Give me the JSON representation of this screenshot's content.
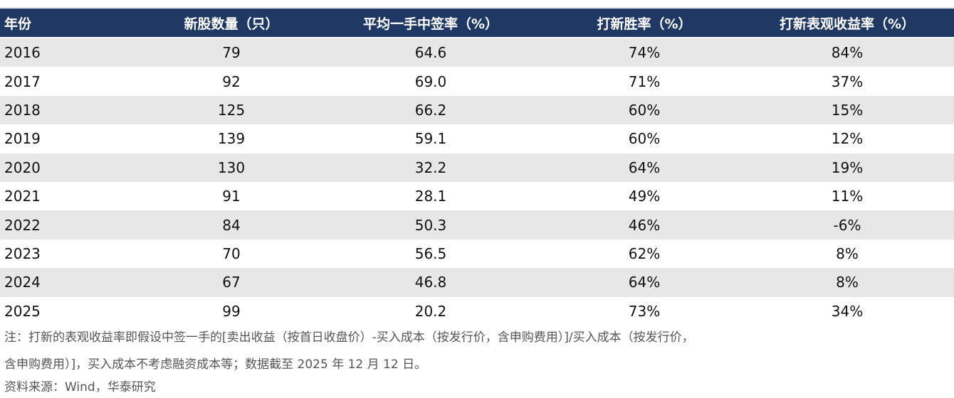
{
  "table": {
    "header": [
      "年份",
      "新股数量（只）",
      "平均一手中签率（%）",
      "打新胜率（%）",
      "打新表观收益率（%）"
    ],
    "rows": [
      [
        "2016",
        "79",
        "64.6",
        "74%",
        "84%"
      ],
      [
        "2017",
        "92",
        "69.0",
        "71%",
        "37%"
      ],
      [
        "2018",
        "125",
        "66.2",
        "60%",
        "15%"
      ],
      [
        "2019",
        "139",
        "59.1",
        "60%",
        "12%"
      ],
      [
        "2020",
        "130",
        "32.2",
        "64%",
        "19%"
      ],
      [
        "2021",
        "91",
        "28.1",
        "49%",
        "11%"
      ],
      [
        "2022",
        "84",
        "50.3",
        "46%",
        "-6%"
      ],
      [
        "2023",
        "70",
        "56.5",
        "62%",
        "8%"
      ],
      [
        "2024",
        "67",
        "46.8",
        "64%",
        "8%"
      ],
      [
        "2025",
        "99",
        "20.2",
        "73%",
        "34%"
      ]
    ]
  },
  "note": [
    "注：打新的表观收益率即假设中签一手的[卖出收益（按首日收盘价）-买入成本（按发行价，含申购费用）]/买入成本（按发行价，",
    "含申购费用）]，买入成本不考虑融资成本等；数据截至 2025 年 12 月 12 日。"
  ],
  "source": "资料来源：Wind，华泰研究"
}
